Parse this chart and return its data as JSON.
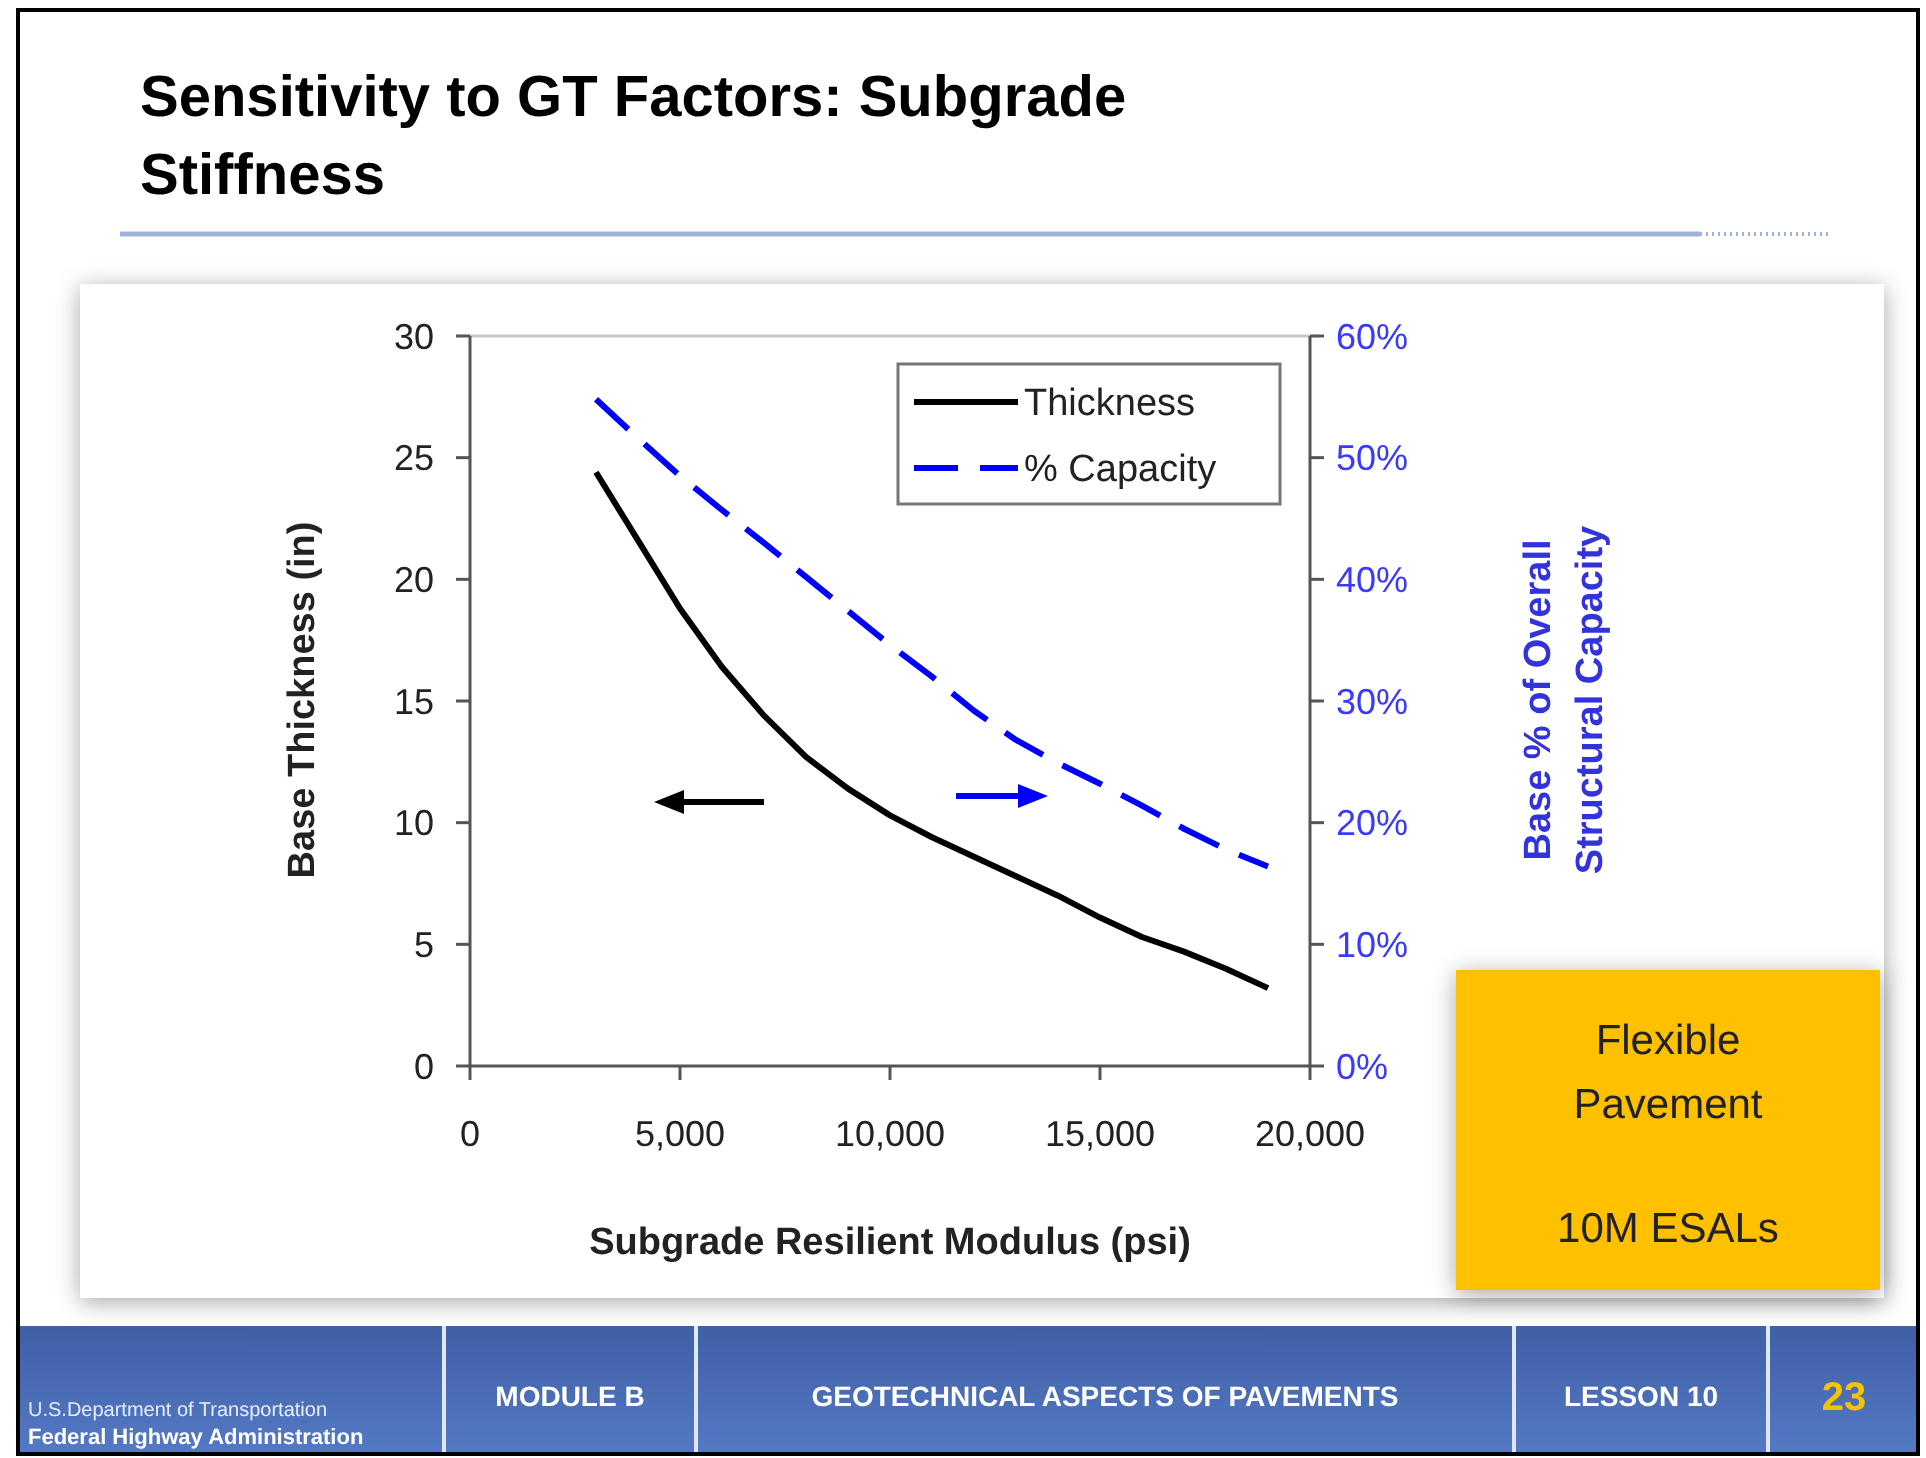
{
  "chart_data": {
    "type": "line",
    "title": "Sensitivity to GT Factors: Subgrade Stiffness",
    "xlabel": "Subgrade Resilient Modulus (psi)",
    "ylabel": "Base Thickness (in)",
    "y2label": "Base % of Overall Structural Capacity",
    "x": [
      3000,
      4000,
      5000,
      6000,
      7000,
      8000,
      9000,
      10000,
      11000,
      12000,
      13000,
      14000,
      15000,
      16000,
      17000,
      18000,
      19000
    ],
    "series": [
      {
        "name": "Thickness",
        "color": "#000000",
        "line_style": "solid",
        "values": [
          24.4,
          21.6,
          18.8,
          16.4,
          14.4,
          12.7,
          11.4,
          10.3,
          9.4,
          8.6,
          7.8,
          7.0,
          6.1,
          5.3,
          4.7,
          4.0,
          3.2
        ]
      },
      {
        "name": "% Capacity",
        "color": "#0000ff",
        "line_style": "dashed",
        "axis": "y2",
        "values": [
          54.8,
          51.6,
          48.5,
          45.7,
          43.0,
          40.2,
          37.4,
          34.6,
          32.0,
          29.2,
          26.8,
          24.9,
          23.2,
          21.4,
          19.5,
          17.8,
          16.4
        ]
      }
    ],
    "xlim": [
      0,
      20000
    ],
    "xticks": [
      0,
      {
        "value": 5000,
        "label": "5,000"
      },
      {
        "value": 10000,
        "label": "10,000"
      },
      {
        "value": 15000,
        "label": "15,000"
      },
      {
        "value": 20000,
        "label": "20,000"
      }
    ],
    "ylim": [
      0,
      30
    ],
    "yticks": [
      0,
      5,
      10,
      15,
      20,
      25,
      30
    ],
    "y2lim": [
      0,
      60
    ],
    "y2ticks": [
      {
        "value": 0,
        "label": "0%"
      },
      {
        "value": 10,
        "label": "10%"
      },
      {
        "value": 20,
        "label": "20%"
      },
      {
        "value": 30,
        "label": "30%"
      },
      {
        "value": 40,
        "label": "40%"
      },
      {
        "value": 50,
        "label": "50%"
      },
      {
        "value": 60,
        "label": "60%"
      }
    ],
    "legend": "top right",
    "annotations": [
      "Flexible Pavement",
      "10M ESALs",
      "U.S.Department of Transportation",
      "Federal Highway Administration",
      "MODULE B",
      "GEOTECHNICAL ASPECTS OF PAVEMENTS",
      "LESSON 10",
      "23"
    ]
  }
}
